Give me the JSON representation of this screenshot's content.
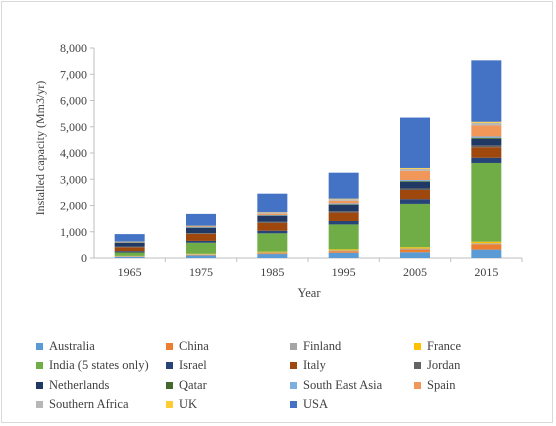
{
  "chart_data": {
    "type": "bar",
    "stacked": true,
    "title": "",
    "xlabel": "Year",
    "ylabel": "Installed capacity (Mm3/yr)",
    "categories": [
      "1965",
      "1975",
      "1985",
      "1995",
      "2005",
      "2015"
    ],
    "ylim": [
      0,
      8000
    ],
    "yticks": [
      "0",
      "1,000",
      "2,000",
      "3,000",
      "4,000",
      "5,000",
      "6,000",
      "7,000",
      "8,000"
    ],
    "grid": false,
    "legend_position": "bottom",
    "series": [
      {
        "name": "Australia",
        "color": "#5b9bd5",
        "values": [
          50,
          100,
          150,
          200,
          220,
          320
        ]
      },
      {
        "name": "China",
        "color": "#ed7d31",
        "values": [
          10,
          20,
          30,
          60,
          100,
          200
        ]
      },
      {
        "name": "Finland",
        "color": "#a5a5a5",
        "values": [
          10,
          20,
          30,
          30,
          40,
          40
        ]
      },
      {
        "name": "France",
        "color": "#ffc000",
        "values": [
          10,
          20,
          30,
          40,
          50,
          60
        ]
      },
      {
        "name": "India (5 states only)",
        "color": "#70ad47",
        "values": [
          130,
          420,
          700,
          950,
          1650,
          3000
        ]
      },
      {
        "name": "Israel",
        "color": "#264478",
        "values": [
          50,
          70,
          100,
          130,
          180,
          200
        ]
      },
      {
        "name": "Italy",
        "color": "#9e480e",
        "values": [
          150,
          270,
          300,
          320,
          350,
          400
        ]
      },
      {
        "name": "Jordan",
        "color": "#636363",
        "values": [
          20,
          30,
          40,
          50,
          60,
          70
        ]
      },
      {
        "name": "Netherlands",
        "color": "#1f3864",
        "values": [
          150,
          200,
          230,
          250,
          250,
          250
        ]
      },
      {
        "name": "Qatar",
        "color": "#43682b",
        "values": [
          10,
          10,
          10,
          20,
          30,
          40
        ]
      },
      {
        "name": "South East Asia",
        "color": "#7cafdd",
        "values": [
          10,
          20,
          20,
          30,
          40,
          50
        ]
      },
      {
        "name": "Spain",
        "color": "#f1975a",
        "values": [
          10,
          20,
          50,
          100,
          350,
          420
        ]
      },
      {
        "name": "Southern Africa",
        "color": "#b7b7b7",
        "values": [
          10,
          20,
          40,
          60,
          80,
          100
        ]
      },
      {
        "name": "UK",
        "color": "#ffcd33",
        "values": [
          5,
          10,
          15,
          20,
          30,
          40
        ]
      },
      {
        "name": "USA",
        "color": "#4472c4",
        "values": [
          285,
          450,
          705,
          990,
          1920,
          2340
        ]
      }
    ]
  }
}
